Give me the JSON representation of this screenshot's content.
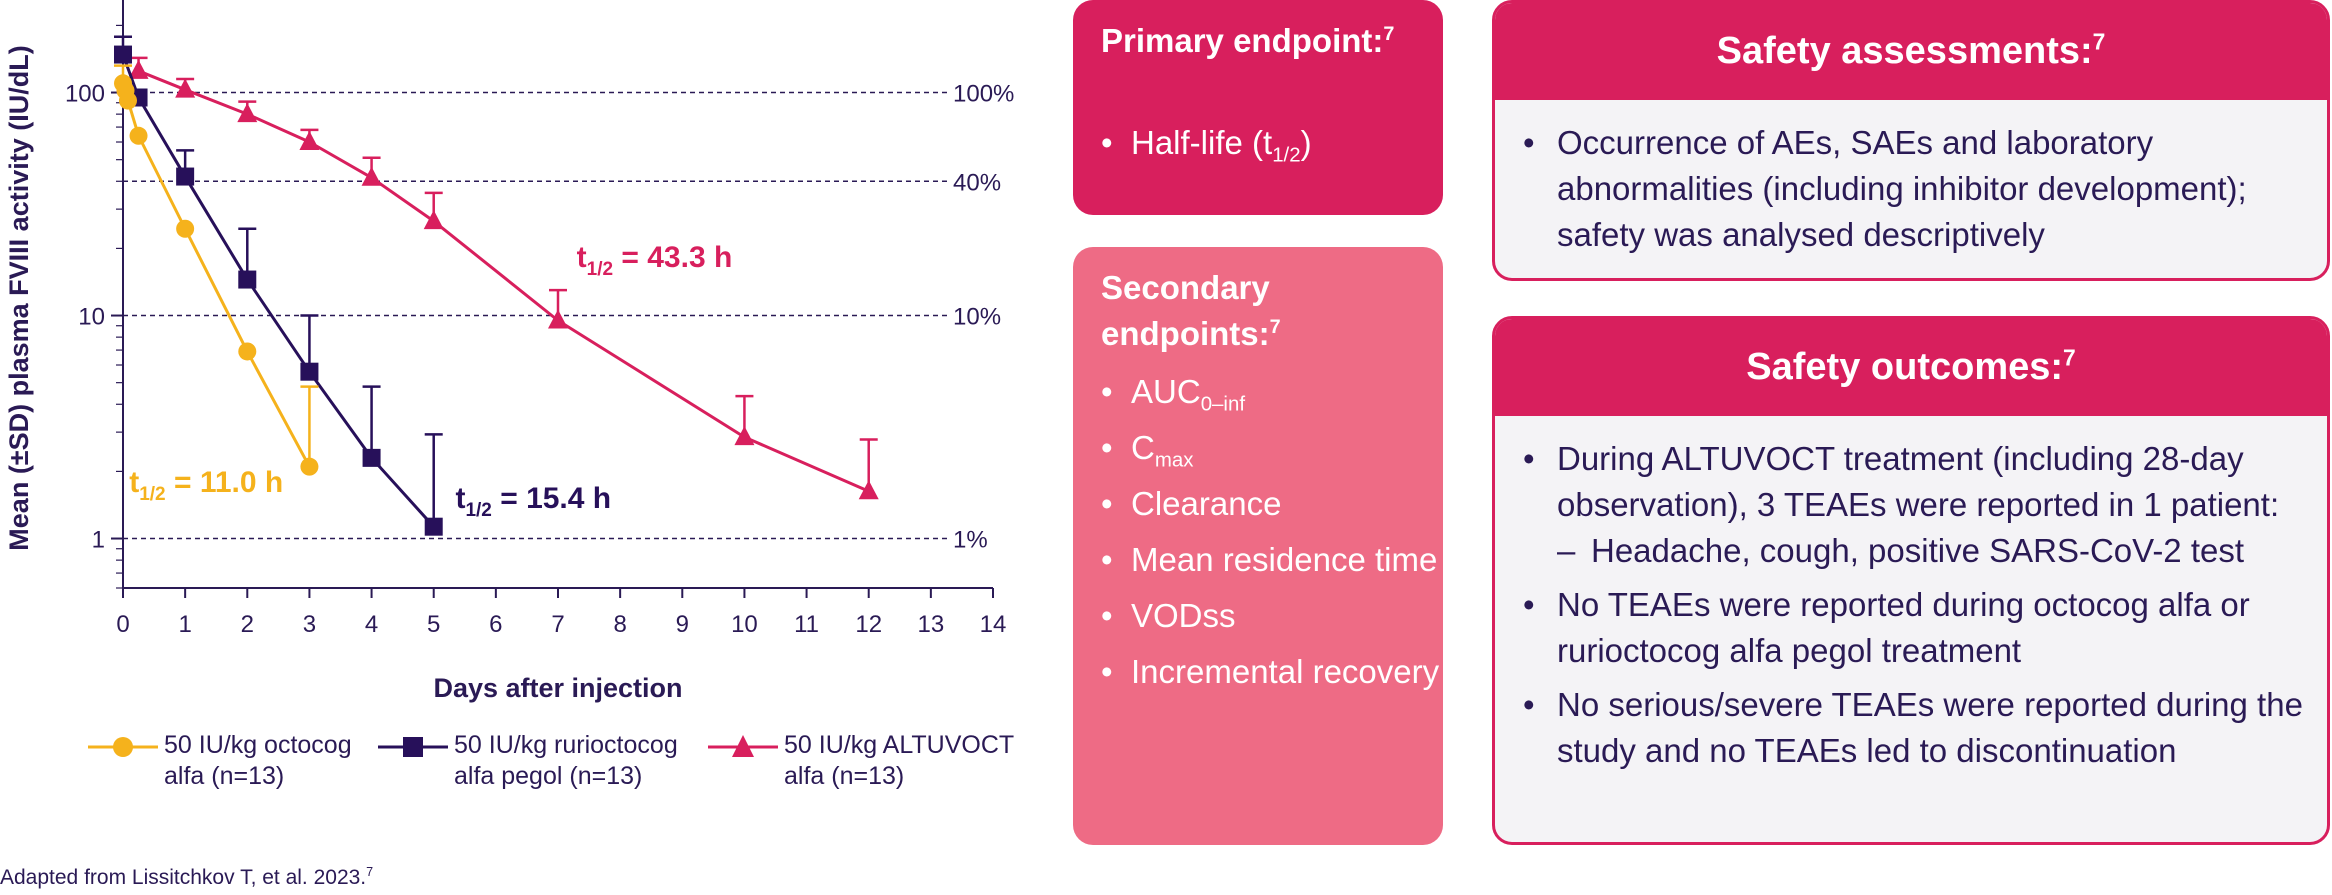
{
  "chart_data": {
    "type": "line",
    "xlabel": "Days after injection",
    "ylabel": "Mean (±SD) plasma FVIII activity (IU/dL)",
    "xlim": [
      0,
      14
    ],
    "ylim": [
      0.6,
      260
    ],
    "yscale": "log",
    "x_ticks": [
      0,
      1,
      2,
      3,
      4,
      5,
      6,
      7,
      8,
      9,
      10,
      11,
      12,
      13,
      14
    ],
    "y_ticks": [
      {
        "value": 1,
        "label": "1"
      },
      {
        "value": 10,
        "label": "10"
      },
      {
        "value": 100,
        "label": "100"
      }
    ],
    "reference_lines": [
      {
        "value": 100,
        "label": "100%"
      },
      {
        "value": 40,
        "label": "40%"
      },
      {
        "value": 10,
        "label": "10%"
      },
      {
        "value": 1,
        "label": "1%"
      }
    ],
    "series": [
      {
        "name": "50 IU/kg octocog alfa (n=13)",
        "legend_lines": [
          "50 IU/kg octocog",
          "alfa (n=13)"
        ],
        "color": "#f5b21c",
        "marker": "circle",
        "points": [
          {
            "x": 0,
            "y": 110,
            "err": 22
          },
          {
            "x": 0.04,
            "y": 102
          },
          {
            "x": 0.08,
            "y": 92
          },
          {
            "x": 0.25,
            "y": 64
          },
          {
            "x": 1,
            "y": 24.5
          },
          {
            "x": 2,
            "y": 6.9
          },
          {
            "x": 3,
            "y": 2.1,
            "err": 2.7
          }
        ],
        "half_life": {
          "text": "t",
          "sub": "1/2",
          "value": " = 11.0 h",
          "x": 0.1,
          "y": 1.62
        }
      },
      {
        "name": "50 IU/kg rurioctocog alfa pegol (n=13)",
        "legend_lines": [
          "50 IU/kg rurioctocog",
          "alfa pegol (n=13)"
        ],
        "color": "#27105a",
        "marker": "square",
        "points": [
          {
            "x": 0,
            "y": 148,
            "err": 30
          },
          {
            "x": 0.25,
            "y": 95
          },
          {
            "x": 1,
            "y": 42,
            "err": 13
          },
          {
            "x": 2,
            "y": 14.5,
            "err": 10
          },
          {
            "x": 3,
            "y": 5.6,
            "err": 4.4
          },
          {
            "x": 4,
            "y": 2.3,
            "err": 2.5
          },
          {
            "x": 5,
            "y": 1.13,
            "err": 1.8
          }
        ],
        "half_life": {
          "text": "t",
          "sub": "1/2",
          "value": " = 15.4 h",
          "x": 5.35,
          "y": 1.37
        }
      },
      {
        "name": "50 IU/kg ALTUVOCT alfa (n=13)",
        "legend_lines": [
          "50 IU/kg ALTUVOCT",
          "alfa (n=13)"
        ],
        "color": "#d81f5d",
        "marker": "triangle",
        "points": [
          {
            "x": 0.25,
            "y": 125,
            "err": 18
          },
          {
            "x": 1,
            "y": 103,
            "err": 12
          },
          {
            "x": 2,
            "y": 80,
            "err": 11
          },
          {
            "x": 3,
            "y": 60,
            "err": 8
          },
          {
            "x": 4,
            "y": 41.5,
            "err": 9.5
          },
          {
            "x": 5,
            "y": 26.5,
            "err": 9
          },
          {
            "x": 7,
            "y": 9.5,
            "err": 3.5
          },
          {
            "x": 10,
            "y": 2.85,
            "err": 1.5
          },
          {
            "x": 12,
            "y": 1.63,
            "err": 1.15
          }
        ],
        "half_life": {
          "text": "t",
          "sub": "1/2",
          "value": " = 43.3 h",
          "x": 7.3,
          "y": 16.5
        }
      }
    ]
  },
  "footnote": {
    "text": "Adapted from Lissitchkov T, et al. 2023.",
    "sup": "7"
  },
  "primary": {
    "title": "Primary endpoint:",
    "sup": "7",
    "items": [
      {
        "text": "Half-life (t",
        "sub": "1/2",
        "tail": ")"
      }
    ]
  },
  "secondary": {
    "title": "Secondary endpoints:",
    "sup": "7",
    "items": [
      {
        "text": "AUC",
        "sub": "0–inf"
      },
      {
        "text": "C",
        "sub": "max"
      },
      {
        "text": "Clearance"
      },
      {
        "text": "Mean residence time"
      },
      {
        "text": "VODss"
      },
      {
        "text": "Incremental recovery"
      }
    ]
  },
  "safety_assessments": {
    "title": "Safety assessments:",
    "sup": "7",
    "item": "Occurrence of AEs, SAEs and laboratory abnormalities (including inhibitor development); safety was analysed descriptively"
  },
  "safety_outcomes": {
    "title": "Safety outcomes:",
    "sup": "7",
    "item1": "During ALTUVOCT treatment (including 28-day observation), 3 TEAEs were reported in 1 patient:",
    "subitem": "Headache, cough, positive SARS-CoV-2 test",
    "item2": "No TEAEs were reported during octocog alfa or rurioctocog alfa pegol treatment",
    "item3": "No serious/severe TEAEs were reported during the study and no TEAEs led to discontinuation"
  }
}
